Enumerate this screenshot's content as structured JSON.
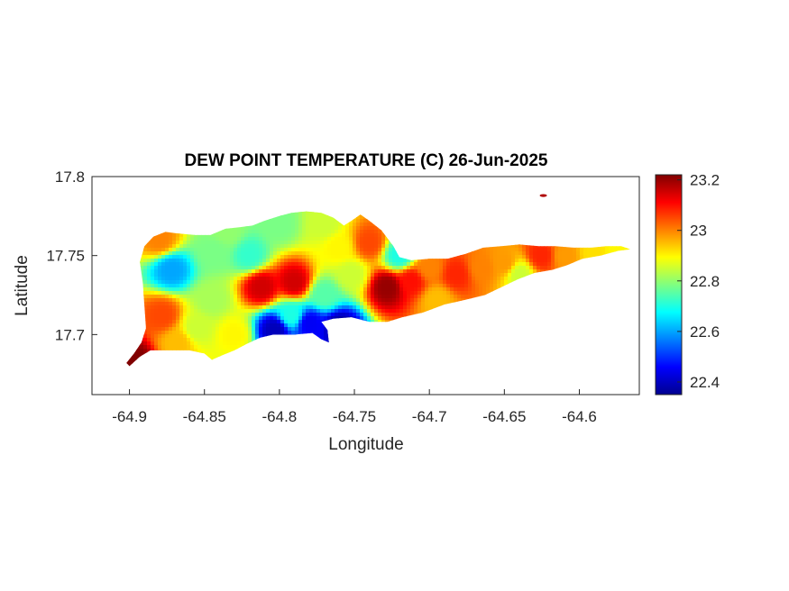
{
  "chart_data": {
    "type": "heatmap",
    "title": "DEW POINT TEMPERATURE (C) 26-Jun-2025",
    "xlabel": "Longitude",
    "ylabel": "Latitude",
    "xlim": [
      -64.925,
      -64.56
    ],
    "ylim": [
      17.662,
      17.8
    ],
    "xticks": [
      -64.9,
      -64.85,
      -64.8,
      -64.75,
      -64.7,
      -64.65,
      -64.6
    ],
    "xtick_labels": [
      "-64.9",
      "-64.85",
      "-64.8",
      "-64.75",
      "-64.7",
      "-64.65",
      "-64.6"
    ],
    "yticks": [
      17.7,
      17.75,
      17.8
    ],
    "ytick_labels": [
      "17.7",
      "17.75",
      "17.8"
    ],
    "colormap": "jet",
    "clim": [
      22.35,
      23.22
    ],
    "colorbar_ticks": [
      22.4,
      22.6,
      22.8,
      23,
      23.2
    ],
    "colorbar_tick_labels": [
      "22.4",
      "22.6",
      "22.8",
      "23",
      "23.2"
    ],
    "grid": false,
    "island_outline": [
      [
        -64.9,
        17.68
      ],
      [
        -64.893,
        17.686
      ],
      [
        -64.886,
        17.69
      ],
      [
        -64.872,
        17.69
      ],
      [
        -64.86,
        17.69
      ],
      [
        -64.85,
        17.688
      ],
      [
        -64.845,
        17.684
      ],
      [
        -64.838,
        17.687
      ],
      [
        -64.83,
        17.69
      ],
      [
        -64.822,
        17.694
      ],
      [
        -64.813,
        17.698
      ],
      [
        -64.804,
        17.7
      ],
      [
        -64.79,
        17.7
      ],
      [
        -64.778,
        17.701
      ],
      [
        -64.772,
        17.697
      ],
      [
        -64.767,
        17.695
      ],
      [
        -64.768,
        17.703
      ],
      [
        -64.772,
        17.708
      ],
      [
        -64.764,
        17.71
      ],
      [
        -64.752,
        17.711
      ],
      [
        -64.74,
        17.708
      ],
      [
        -64.728,
        17.708
      ],
      [
        -64.718,
        17.711
      ],
      [
        -64.704,
        17.714
      ],
      [
        -64.69,
        17.719
      ],
      [
        -64.676,
        17.722
      ],
      [
        -64.663,
        17.725
      ],
      [
        -64.652,
        17.73
      ],
      [
        -64.641,
        17.735
      ],
      [
        -64.63,
        17.739
      ],
      [
        -64.618,
        17.741
      ],
      [
        -64.608,
        17.744
      ],
      [
        -64.598,
        17.748
      ],
      [
        -64.586,
        17.75
      ],
      [
        -64.574,
        17.753
      ],
      [
        -64.566,
        17.754
      ],
      [
        -64.572,
        17.756
      ],
      [
        -64.582,
        17.756
      ],
      [
        -64.592,
        17.755
      ],
      [
        -64.604,
        17.755
      ],
      [
        -64.616,
        17.756
      ],
      [
        -64.627,
        17.756
      ],
      [
        -64.64,
        17.757
      ],
      [
        -64.652,
        17.756
      ],
      [
        -64.664,
        17.755
      ],
      [
        -64.676,
        17.751
      ],
      [
        -64.688,
        17.748
      ],
      [
        -64.7,
        17.748
      ],
      [
        -64.712,
        17.747
      ],
      [
        -64.72,
        17.749
      ],
      [
        -64.724,
        17.756
      ],
      [
        -64.732,
        17.766
      ],
      [
        -64.74,
        17.772
      ],
      [
        -64.746,
        17.776
      ],
      [
        -64.752,
        17.772
      ],
      [
        -64.757,
        17.769
      ],
      [
        -64.764,
        17.774
      ],
      [
        -64.772,
        17.777
      ],
      [
        -64.782,
        17.778
      ],
      [
        -64.792,
        17.777
      ],
      [
        -64.8,
        17.775
      ],
      [
        -64.81,
        17.772
      ],
      [
        -64.818,
        17.769
      ],
      [
        -64.826,
        17.768
      ],
      [
        -64.836,
        17.767
      ],
      [
        -64.846,
        17.763
      ],
      [
        -64.856,
        17.763
      ],
      [
        -64.868,
        17.764
      ],
      [
        -64.876,
        17.765
      ],
      [
        -64.884,
        17.762
      ],
      [
        -64.89,
        17.756
      ],
      [
        -64.893,
        17.746
      ],
      [
        -64.891,
        17.732
      ],
      [
        -64.89,
        17.718
      ],
      [
        -64.889,
        17.704
      ],
      [
        -64.892,
        17.695
      ],
      [
        -64.897,
        17.688
      ],
      [
        -64.902,
        17.682
      ]
    ],
    "outlier_islet": [
      -64.624,
      17.788
    ],
    "stations": [
      {
        "lon": -64.872,
        "lat": 17.741,
        "value": 22.6
      },
      {
        "lon": -64.878,
        "lat": 17.712,
        "value": 23.05
      },
      {
        "lon": -64.868,
        "lat": 17.695,
        "value": 22.95
      },
      {
        "lon": -64.845,
        "lat": 17.722,
        "value": 22.82
      },
      {
        "lon": -64.843,
        "lat": 17.752,
        "value": 22.78
      },
      {
        "lon": -64.82,
        "lat": 17.75,
        "value": 22.72
      },
      {
        "lon": -64.812,
        "lat": 17.73,
        "value": 23.15
      },
      {
        "lon": -64.79,
        "lat": 17.733,
        "value": 23.15
      },
      {
        "lon": -64.792,
        "lat": 17.712,
        "value": 22.7
      },
      {
        "lon": -64.803,
        "lat": 17.703,
        "value": 22.4
      },
      {
        "lon": -64.78,
        "lat": 17.707,
        "value": 22.45
      },
      {
        "lon": -64.77,
        "lat": 17.725,
        "value": 22.75
      },
      {
        "lon": -64.76,
        "lat": 17.705,
        "value": 22.38
      },
      {
        "lon": -64.752,
        "lat": 17.738,
        "value": 22.85
      },
      {
        "lon": -64.74,
        "lat": 17.758,
        "value": 23.05
      },
      {
        "lon": -64.728,
        "lat": 17.73,
        "value": 23.2
      },
      {
        "lon": -64.712,
        "lat": 17.734,
        "value": 23.1
      },
      {
        "lon": -64.72,
        "lat": 17.75,
        "value": 22.7
      },
      {
        "lon": -64.695,
        "lat": 17.722,
        "value": 22.95
      },
      {
        "lon": -64.682,
        "lat": 17.738,
        "value": 23.08
      },
      {
        "lon": -64.665,
        "lat": 17.742,
        "value": 23.0
      },
      {
        "lon": -64.65,
        "lat": 17.745,
        "value": 22.98
      },
      {
        "lon": -64.64,
        "lat": 17.738,
        "value": 22.85
      },
      {
        "lon": -64.625,
        "lat": 17.75,
        "value": 23.08
      },
      {
        "lon": -64.61,
        "lat": 17.75,
        "value": 22.98
      },
      {
        "lon": -64.59,
        "lat": 17.752,
        "value": 22.92
      },
      {
        "lon": -64.575,
        "lat": 17.753,
        "value": 22.9
      },
      {
        "lon": -64.855,
        "lat": 17.704,
        "value": 22.85
      },
      {
        "lon": -64.83,
        "lat": 17.7,
        "value": 22.9
      },
      {
        "lon": -64.897,
        "lat": 17.683,
        "value": 23.22
      },
      {
        "lon": -64.835,
        "lat": 17.765,
        "value": 22.8
      },
      {
        "lon": -64.8,
        "lat": 17.77,
        "value": 22.78
      },
      {
        "lon": -64.77,
        "lat": 17.77,
        "value": 22.85
      },
      {
        "lon": -64.88,
        "lat": 17.76,
        "value": 23.0
      },
      {
        "lon": -64.76,
        "lat": 17.755,
        "value": 22.9
      },
      {
        "lon": -64.7,
        "lat": 17.742,
        "value": 23.0
      }
    ]
  }
}
